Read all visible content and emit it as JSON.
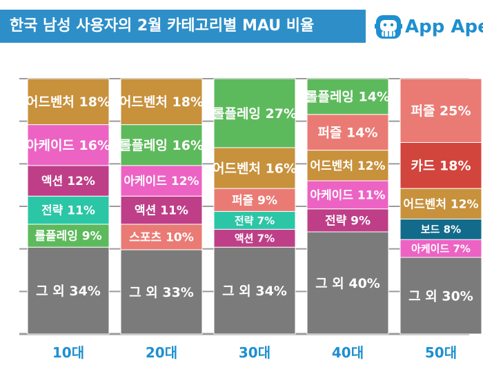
{
  "header": {
    "title": "한국 남성 사용자의 2월 카테고리별 MAU 비율",
    "logo_text": "App Ape",
    "logo_icon": "ape-face-icon",
    "banner_color": "#2e8fc8",
    "logo_color": "#1e8fd0"
  },
  "chart_data": {
    "type": "bar",
    "stacked": true,
    "normalized": true,
    "title": "한국 남성 사용자의 2월 카테고리별 MAU 비율",
    "categories": [
      "10대",
      "20대",
      "30대",
      "40대",
      "50대"
    ],
    "unit": "%",
    "ylim": [
      0,
      100
    ],
    "grid": true,
    "legend": "none",
    "category_colors": {
      "어드벤처": "#c8913c",
      "아케이드": "#ec63c4",
      "액션": "#be3f88",
      "전략": "#be3f88",
      "롤플레잉": "#5dba5c",
      "스포츠": "#ea7b74",
      "퍼즐": "#ea7b74",
      "카드": "#d2453d",
      "보드": "#126b8a",
      "그 외": "#7b7b7b"
    },
    "stacks": [
      {
        "category": "10대",
        "segments": [
          {
            "label": "그 외",
            "value": 34,
            "color": "#7b7b7b"
          },
          {
            "label": "롤플레잉",
            "value": 9,
            "color": "#5dba5c"
          },
          {
            "label": "전략",
            "value": 11,
            "color": "#2bc6a6"
          },
          {
            "label": "액션",
            "value": 12,
            "color": "#be3f88"
          },
          {
            "label": "아케이드",
            "value": 16,
            "color": "#ec63c4"
          },
          {
            "label": "어드벤처",
            "value": 18,
            "color": "#c8913c"
          }
        ]
      },
      {
        "category": "20대",
        "segments": [
          {
            "label": "그 외",
            "value": 33,
            "color": "#7b7b7b"
          },
          {
            "label": "스포츠",
            "value": 10,
            "color": "#ea7b74"
          },
          {
            "label": "액션",
            "value": 11,
            "color": "#be3f88"
          },
          {
            "label": "아케이드",
            "value": 12,
            "color": "#ec63c4"
          },
          {
            "label": "롤플레잉",
            "value": 16,
            "color": "#5dba5c"
          },
          {
            "label": "어드벤처",
            "value": 18,
            "color": "#c8913c"
          }
        ]
      },
      {
        "category": "30대",
        "segments": [
          {
            "label": "그 외",
            "value": 34,
            "color": "#7b7b7b"
          },
          {
            "label": "액션",
            "value": 7,
            "color": "#be3f88"
          },
          {
            "label": "전략",
            "value": 7,
            "color": "#2bc6a6"
          },
          {
            "label": "퍼즐",
            "value": 9,
            "color": "#ea7b74"
          },
          {
            "label": "어드벤처",
            "value": 16,
            "color": "#c8913c"
          },
          {
            "label": "롤플레잉",
            "value": 27,
            "color": "#5dba5c"
          }
        ]
      },
      {
        "category": "40대",
        "segments": [
          {
            "label": "그 외",
            "value": 40,
            "color": "#7b7b7b"
          },
          {
            "label": "전략",
            "value": 9,
            "color": "#be3f88"
          },
          {
            "label": "아케이드",
            "value": 11,
            "color": "#ec63c4"
          },
          {
            "label": "어드벤처",
            "value": 12,
            "color": "#c8913c"
          },
          {
            "label": "퍼즐",
            "value": 14,
            "color": "#ea7b74"
          },
          {
            "label": "롤플레잉",
            "value": 14,
            "color": "#5dba5c"
          }
        ]
      },
      {
        "category": "50대",
        "segments": [
          {
            "label": "그 외",
            "value": 30,
            "color": "#7b7b7b"
          },
          {
            "label": "아케이드",
            "value": 7,
            "color": "#ec63c4"
          },
          {
            "label": "보드",
            "value": 8,
            "color": "#126b8a"
          },
          {
            "label": "어드벤처",
            "value": 12,
            "color": "#c8913c"
          },
          {
            "label": "카드",
            "value": 18,
            "color": "#d2453d"
          },
          {
            "label": "퍼즐",
            "value": 25,
            "color": "#ea7b74"
          }
        ]
      }
    ]
  }
}
